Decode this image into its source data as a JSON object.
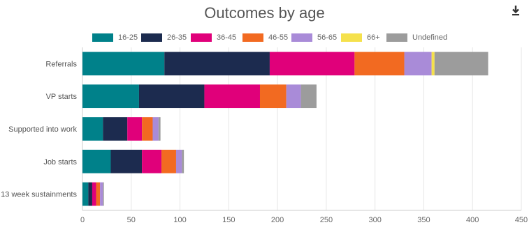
{
  "header": {
    "title": "Outcomes by age",
    "download_icon": "download-icon"
  },
  "colors": {
    "16-25": "#00818a",
    "26-35": "#1c2b4f",
    "36-45": "#e0007a",
    "46-55": "#f26a21",
    "56-65": "#a98bd8",
    "66+": "#f5e14c",
    "Undefined": "#9c9c9c"
  },
  "chart_data": {
    "type": "bar",
    "orientation": "horizontal",
    "stacked": true,
    "title": "Outcomes by age",
    "categories": [
      "Referrals",
      "VP starts",
      "Supported into work",
      "Job starts",
      "13 week sustainments"
    ],
    "series": [
      {
        "name": "16-25",
        "values": [
          84,
          58,
          21,
          29,
          6
        ]
      },
      {
        "name": "26-35",
        "values": [
          108,
          67,
          25,
          32,
          4
        ]
      },
      {
        "name": "36-45",
        "values": [
          87,
          57,
          15,
          20,
          4
        ]
      },
      {
        "name": "46-55",
        "values": [
          51,
          27,
          11,
          15,
          4
        ]
      },
      {
        "name": "56-65",
        "values": [
          28,
          15,
          6,
          6,
          3
        ]
      },
      {
        "name": "66+",
        "values": [
          3,
          0,
          0,
          0,
          0
        ]
      },
      {
        "name": "Undefined",
        "values": [
          55,
          16,
          2,
          2,
          1
        ]
      }
    ],
    "xlim": [
      0,
      450
    ],
    "xticks": [
      "0",
      "50",
      "100",
      "150",
      "200",
      "250",
      "300",
      "350",
      "400",
      "450"
    ],
    "grid": true,
    "legend": "top"
  }
}
